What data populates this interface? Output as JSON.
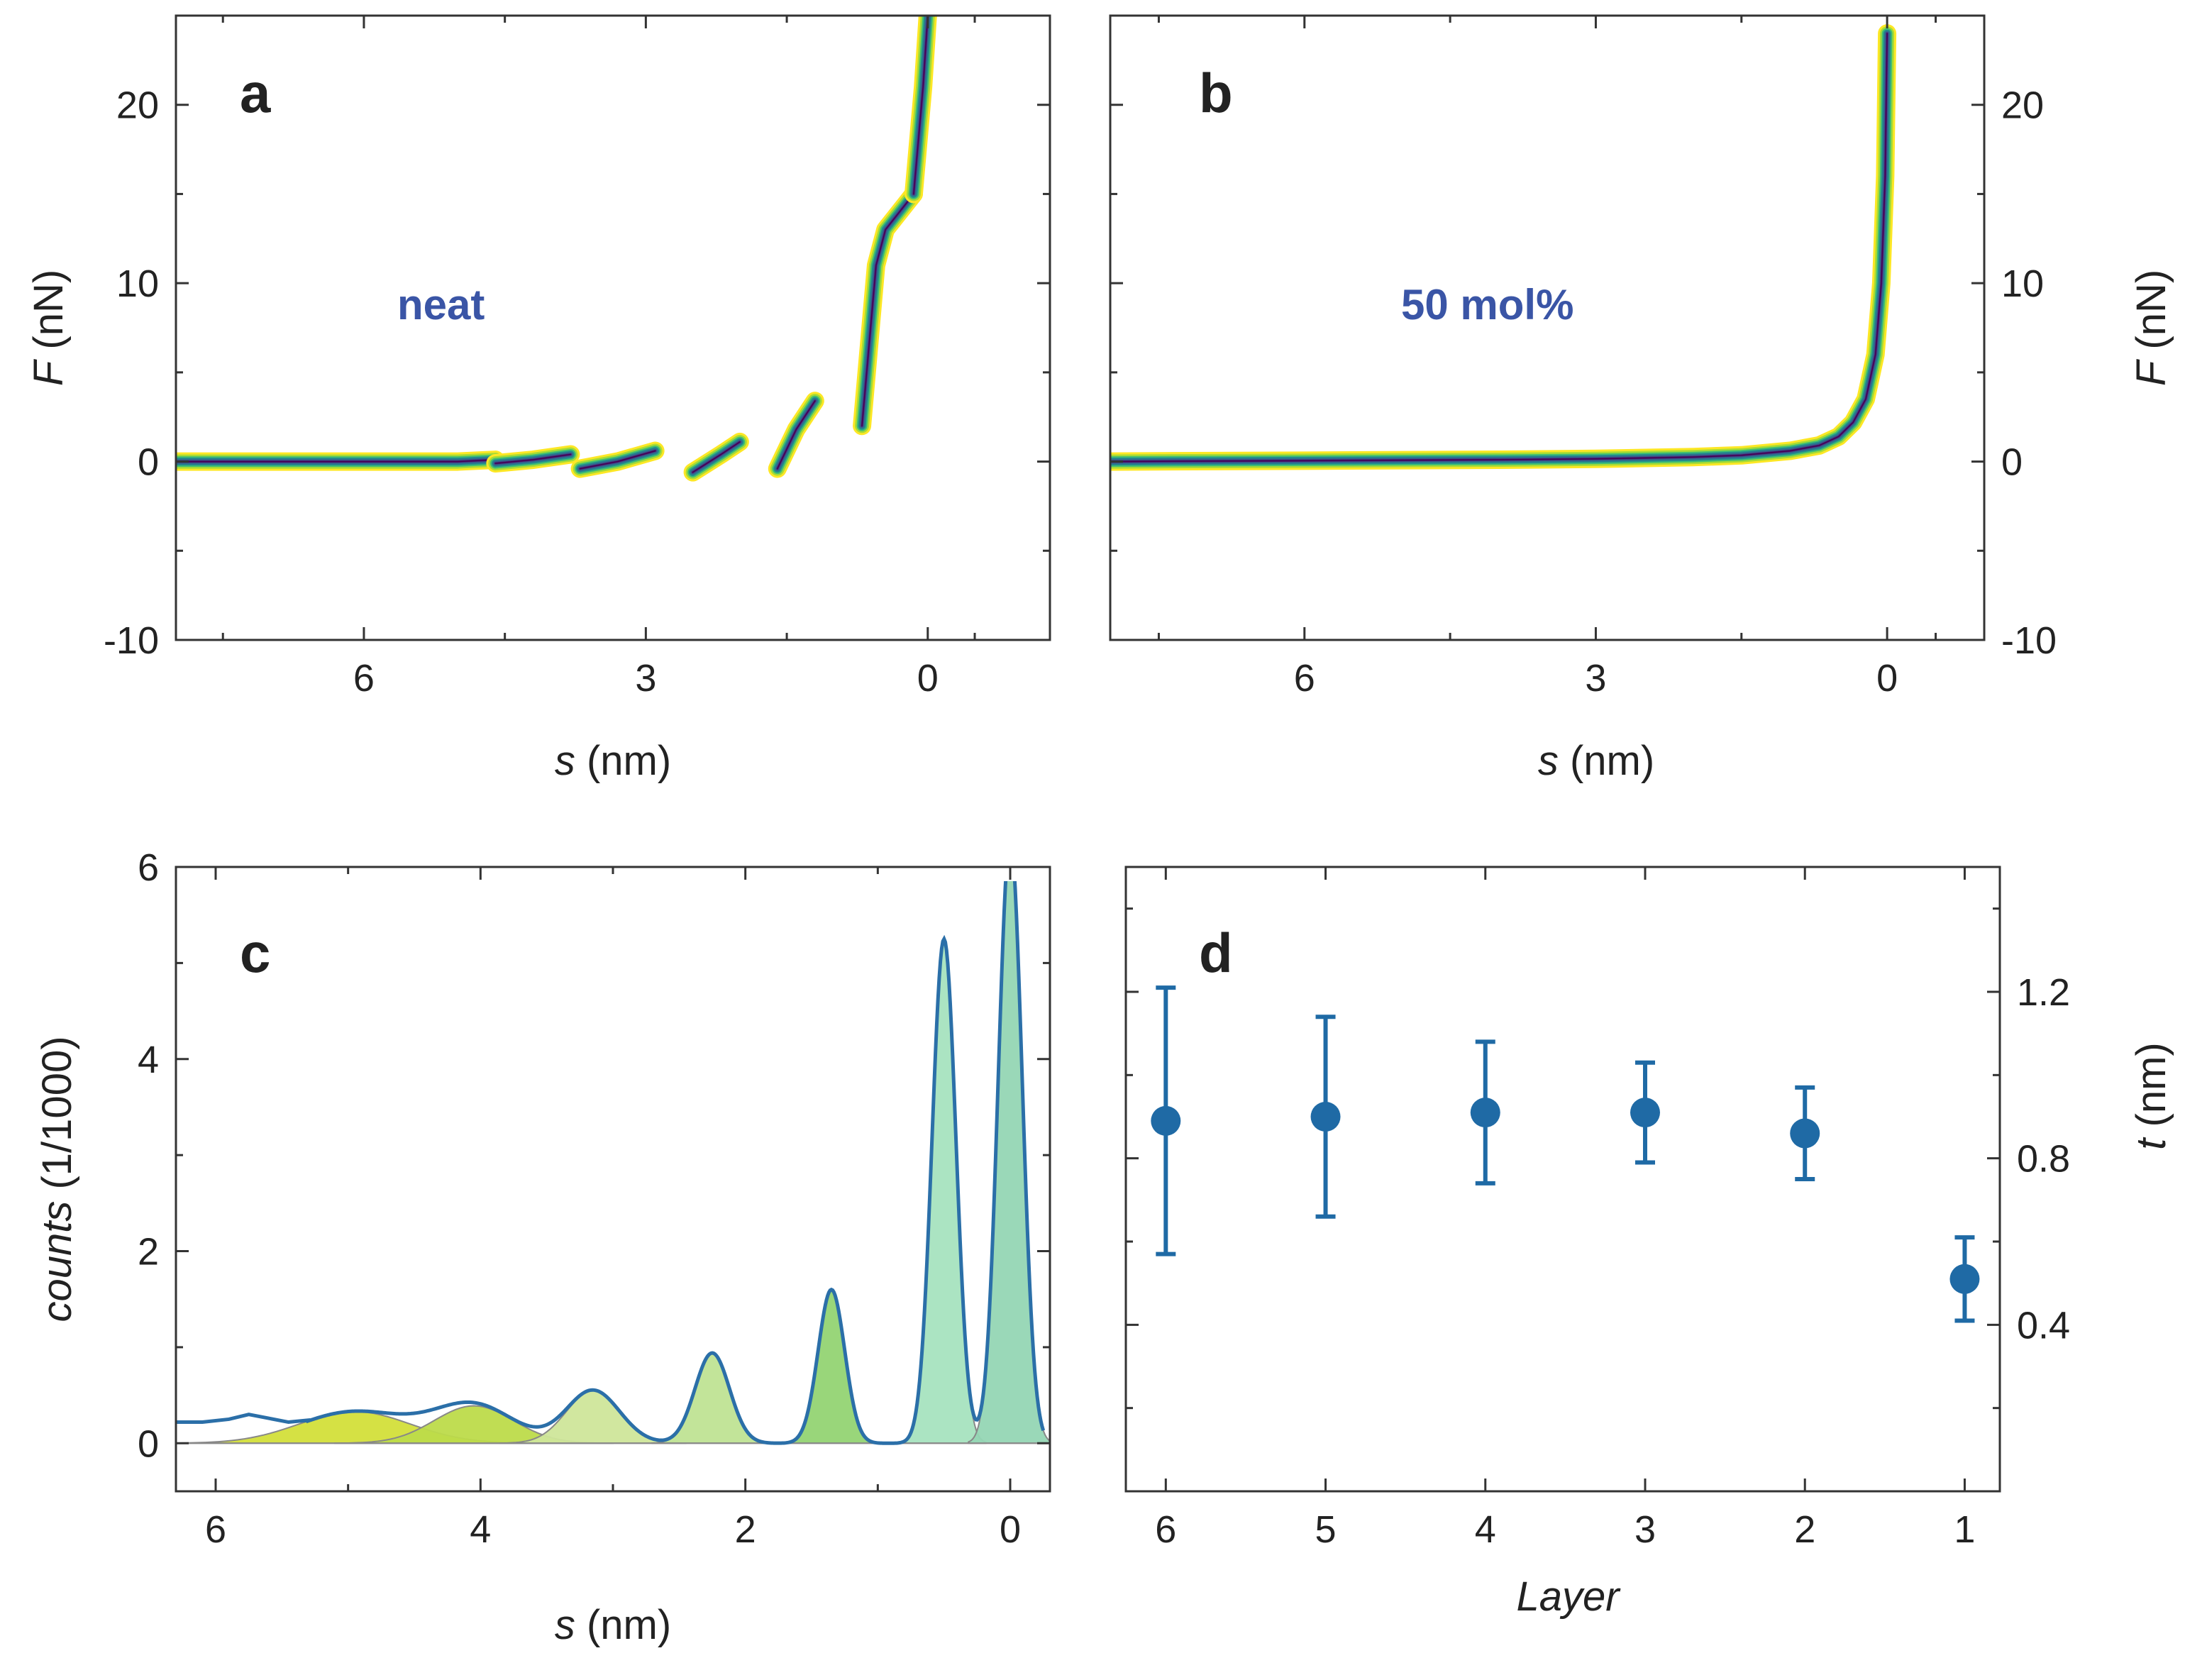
{
  "chart_data": [
    {
      "type": "heatmap",
      "panel": "a",
      "annotation": "neat",
      "xlabel_italic": "s",
      "xlabel_rest": " (nm)",
      "ylabel_italic": "F",
      "ylabel_rest": " (nN)",
      "xlim": [
        8,
        -1.3
      ],
      "ylim": [
        -10,
        25
      ],
      "xticks": [
        6,
        3,
        0
      ],
      "yticks": [
        20,
        10,
        0,
        -10
      ],
      "yaxis_side": "left",
      "colormap": [
        "#fde725",
        "#a8db34",
        "#43bf71",
        "#21908d",
        "#2c728e",
        "#3b528b",
        "#482475",
        "#440154"
      ],
      "annotation_color": "#3a55a6",
      "traces": [
        {
          "segment": "baseline",
          "x": [
            8.0,
            7.0,
            6.0,
            5.0,
            4.6
          ],
          "y": [
            0.0,
            0.0,
            0.0,
            0.0,
            0.1
          ]
        },
        {
          "segment": "layer-6",
          "x": [
            4.6,
            4.2,
            3.8
          ],
          "y": [
            -0.1,
            0.1,
            0.4
          ]
        },
        {
          "segment": "layer-5",
          "x": [
            3.7,
            3.3,
            2.9
          ],
          "y": [
            -0.4,
            0.0,
            0.6
          ]
        },
        {
          "segment": "layer-4",
          "x": [
            2.5,
            2.2,
            2.0
          ],
          "y": [
            -0.6,
            0.4,
            1.1
          ]
        },
        {
          "segment": "layer-3",
          "x": [
            1.6,
            1.4,
            1.2
          ],
          "y": [
            -0.4,
            1.8,
            3.4
          ]
        },
        {
          "segment": "layer-2",
          "x": [
            0.7,
            0.65,
            0.6,
            0.55,
            0.45,
            0.3,
            0.15
          ],
          "y": [
            2.0,
            5.0,
            8.0,
            11.0,
            13.0,
            14.0,
            15.0
          ]
        },
        {
          "segment": "layer-1",
          "x": [
            0.15,
            0.1,
            0.05,
            0.0
          ],
          "y": [
            15.0,
            18.0,
            21.0,
            25.0
          ]
        }
      ]
    },
    {
      "type": "heatmap",
      "panel": "b",
      "annotation": "50 mol%",
      "xlabel_italic": "s",
      "xlabel_rest": " (nm)",
      "ylabel_italic": "F",
      "ylabel_rest": " (nN)",
      "xlim": [
        8,
        -1.0
      ],
      "ylim": [
        -10,
        25
      ],
      "xticks": [
        6,
        3,
        0
      ],
      "yticks": [
        20,
        10,
        0,
        -10
      ],
      "yaxis_side": "right",
      "colormap": [
        "#fde725",
        "#a8db34",
        "#43bf71",
        "#21908d",
        "#2c728e",
        "#3b528b",
        "#482475",
        "#440154"
      ],
      "annotation_color": "#3a55a6",
      "traces": [
        {
          "segment": "approach",
          "x": [
            8.0,
            6.0,
            4.0,
            3.0,
            2.0,
            1.5,
            1.0,
            0.7,
            0.5,
            0.35,
            0.22,
            0.12,
            0.06,
            0.02,
            0.0
          ],
          "y": [
            0.0,
            0.05,
            0.1,
            0.15,
            0.25,
            0.35,
            0.6,
            0.9,
            1.4,
            2.2,
            3.5,
            6.0,
            10.0,
            16.0,
            24.0
          ]
        }
      ]
    },
    {
      "type": "area",
      "panel": "c",
      "xlabel_italic": "s",
      "xlabel_rest": " (nm)",
      "ylabel_italic": "counts",
      "ylabel_rest": " (1/1000)",
      "xlim": [
        6.3,
        -0.3
      ],
      "ylim": [
        -0.5,
        6
      ],
      "xticks": [
        6,
        4,
        2,
        0
      ],
      "yticks": [
        0,
        2,
        4,
        6
      ],
      "yaxis_side": "left",
      "line_color": "#2b6fa8",
      "peaks": [
        {
          "center": 4.95,
          "height": 0.33,
          "width": 0.42,
          "color": "#d3df3a"
        },
        {
          "center": 4.05,
          "height": 0.39,
          "width": 0.3,
          "color": "#bddb4a"
        },
        {
          "center": 3.15,
          "height": 0.55,
          "width": 0.2,
          "color": "#cfe69a"
        },
        {
          "center": 2.25,
          "height": 0.94,
          "width": 0.13,
          "color": "#bfe394"
        },
        {
          "center": 1.35,
          "height": 1.6,
          "width": 0.1,
          "color": "#93d473"
        },
        {
          "center": 0.5,
          "height": 5.25,
          "width": 0.09,
          "color": "#a6e3bf"
        },
        {
          "center": 0.0,
          "height": 6.3,
          "width": 0.09,
          "color": "#95d6b4"
        }
      ],
      "tail_x": [
        6.3,
        6.1,
        5.9,
        5.75,
        5.6,
        5.45,
        5.3
      ],
      "tail_y": [
        0.22,
        0.22,
        0.25,
        0.3,
        0.26,
        0.22,
        0.24
      ]
    },
    {
      "type": "scatter",
      "panel": "d",
      "xlabel": "Layer",
      "ylabel_italic": "t",
      "ylabel_rest": " (nm)",
      "categories": [
        "6",
        "5",
        "4",
        "3",
        "2",
        "1"
      ],
      "x": [
        6,
        5,
        4,
        3,
        2,
        1
      ],
      "y": [
        0.89,
        0.9,
        0.91,
        0.91,
        0.86,
        0.51
      ],
      "err": [
        0.32,
        0.24,
        0.17,
        0.12,
        0.11,
        0.1
      ],
      "xlim": [
        6.25,
        0.78
      ],
      "ylim": [
        0.0,
        1.5
      ],
      "yticks": [
        0.4,
        0.8,
        1.2
      ],
      "yaxis_side": "right",
      "marker_color": "#1f6aa5"
    }
  ]
}
